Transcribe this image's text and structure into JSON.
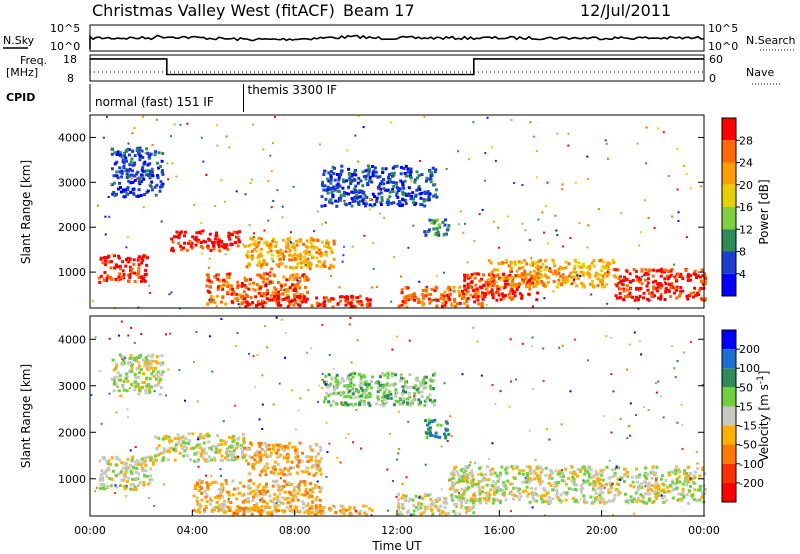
{
  "header": {
    "station": "Christmas Valley West (fitACF)",
    "beam": "Beam 17",
    "date": "12/Jul/2011"
  },
  "top_panels": {
    "nsky_label": "N.Sky",
    "nsearch_label": "N.Search",
    "nsky_ticks": [
      "10^5",
      "10^0"
    ],
    "nsearch_ticks": [
      "10^5",
      "10^0"
    ],
    "freq_label_1": "Freq.",
    "freq_label_2": "[MHz]",
    "freq_ticks": [
      "18",
      "8"
    ],
    "nave_label": "Nave",
    "nave_ticks": [
      "60",
      "0"
    ],
    "cpid_label": "CPID",
    "cpid_segments": [
      {
        "label": "normal (fast) 151 IF",
        "start_hour": 0,
        "end_hour": 6
      },
      {
        "label": "themis 3300 IF",
        "start_hour": 6,
        "end_hour": 24
      }
    ],
    "freq_steps": [
      {
        "start_hour": 0,
        "end_hour": 3,
        "mhz": 16.5
      },
      {
        "start_hour": 3,
        "end_hour": 15,
        "mhz": 10.5
      },
      {
        "start_hour": 15,
        "end_hour": 24,
        "mhz": 16.5
      }
    ]
  },
  "chart_data": [
    {
      "type": "heatmap",
      "name": "power",
      "ylabel": "Slant Range [km]",
      "ylim": [
        200,
        4500
      ],
      "yticks": [
        "4000",
        "3000",
        "2000",
        "1000"
      ],
      "xlim": [
        0,
        24
      ],
      "colorbar_label": "Power [dB]",
      "colorbar_ticks": [
        "28",
        "24",
        "20",
        "16",
        "12",
        "8",
        "4"
      ],
      "colors": [
        "#ff0000",
        "#ff6a00",
        "#ffa000",
        "#e6d000",
        "#7fd040",
        "#2e8b57",
        "#1a3fd0",
        "#0000ff"
      ],
      "regions": [
        {
          "t0": 0.3,
          "t1": 2.2,
          "r0": 800,
          "r1": 1400,
          "level": 0
        },
        {
          "t0": 3.1,
          "t1": 5.8,
          "r0": 1500,
          "r1": 1950,
          "level": 0
        },
        {
          "t0": 4.5,
          "t1": 8.5,
          "r0": 300,
          "r1": 1000,
          "level": 1
        },
        {
          "t0": 5.5,
          "t1": 11.0,
          "r0": 250,
          "r1": 500,
          "level": 0
        },
        {
          "t0": 6.0,
          "t1": 9.5,
          "r0": 1100,
          "r1": 1800,
          "level": 2
        },
        {
          "t0": 12.0,
          "t1": 15.5,
          "r0": 250,
          "r1": 700,
          "level": 1
        },
        {
          "t0": 14.5,
          "t1": 17.5,
          "r0": 400,
          "r1": 1000,
          "level": 0
        },
        {
          "t0": 15.5,
          "t1": 20.5,
          "r0": 700,
          "r1": 1300,
          "level": 2
        },
        {
          "t0": 20.5,
          "t1": 24.0,
          "r0": 400,
          "r1": 1100,
          "level": 0
        },
        {
          "t0": 0.8,
          "t1": 2.8,
          "r0": 2700,
          "r1": 3800,
          "level": 6
        },
        {
          "t0": 9.0,
          "t1": 13.5,
          "r0": 2500,
          "r1": 3400,
          "level": 6
        },
        {
          "t0": 13.0,
          "t1": 14.0,
          "r0": 1800,
          "r1": 2200,
          "level": 5
        }
      ]
    },
    {
      "type": "heatmap",
      "name": "velocity",
      "ylabel": "Slant Range [km]",
      "xlabel": "Time UT",
      "ylim": [
        200,
        4500
      ],
      "yticks": [
        "4000",
        "3000",
        "2000",
        "1000"
      ],
      "xlim": [
        0,
        24
      ],
      "xticks": [
        "00:00",
        "04:00",
        "08:00",
        "12:00",
        "16:00",
        "20:00",
        "00:00"
      ],
      "colorbar_label_main": "Velocity [m s",
      "colorbar_label_exp": "-1",
      "colorbar_label_end": "]",
      "colorbar_ticks": [
        "200",
        "100",
        "50",
        "15",
        "-15",
        "-50",
        "-100",
        "-200"
      ],
      "colors": [
        "#0000ff",
        "#1a6fd0",
        "#2e8b57",
        "#6fd040",
        "#c8c8c0",
        "#ffb000",
        "#ff7a00",
        "#ff3000",
        "#ff0000"
      ],
      "regions": [
        {
          "t0": 0.3,
          "t1": 2.5,
          "r0": 800,
          "r1": 1500,
          "level": 4
        },
        {
          "t0": 2.5,
          "t1": 6.0,
          "r0": 1400,
          "r1": 2000,
          "level": 4
        },
        {
          "t0": 4.0,
          "t1": 9.0,
          "r0": 300,
          "r1": 1000,
          "level": 5
        },
        {
          "t0": 6.0,
          "t1": 9.0,
          "r0": 1100,
          "r1": 1800,
          "level": 5
        },
        {
          "t0": 5.0,
          "t1": 11.0,
          "r0": 250,
          "r1": 450,
          "level": 5
        },
        {
          "t0": 14.0,
          "t1": 24.0,
          "r0": 500,
          "r1": 1300,
          "level": 4
        },
        {
          "t0": 12.0,
          "t1": 15.0,
          "r0": 250,
          "r1": 700,
          "level": 4
        },
        {
          "t0": 0.8,
          "t1": 2.8,
          "r0": 2800,
          "r1": 3700,
          "level": 4
        },
        {
          "t0": 9.0,
          "t1": 13.5,
          "r0": 2600,
          "r1": 3300,
          "level": 3
        },
        {
          "t0": 13.0,
          "t1": 14.0,
          "r0": 1900,
          "r1": 2300,
          "level": 2
        }
      ]
    }
  ]
}
